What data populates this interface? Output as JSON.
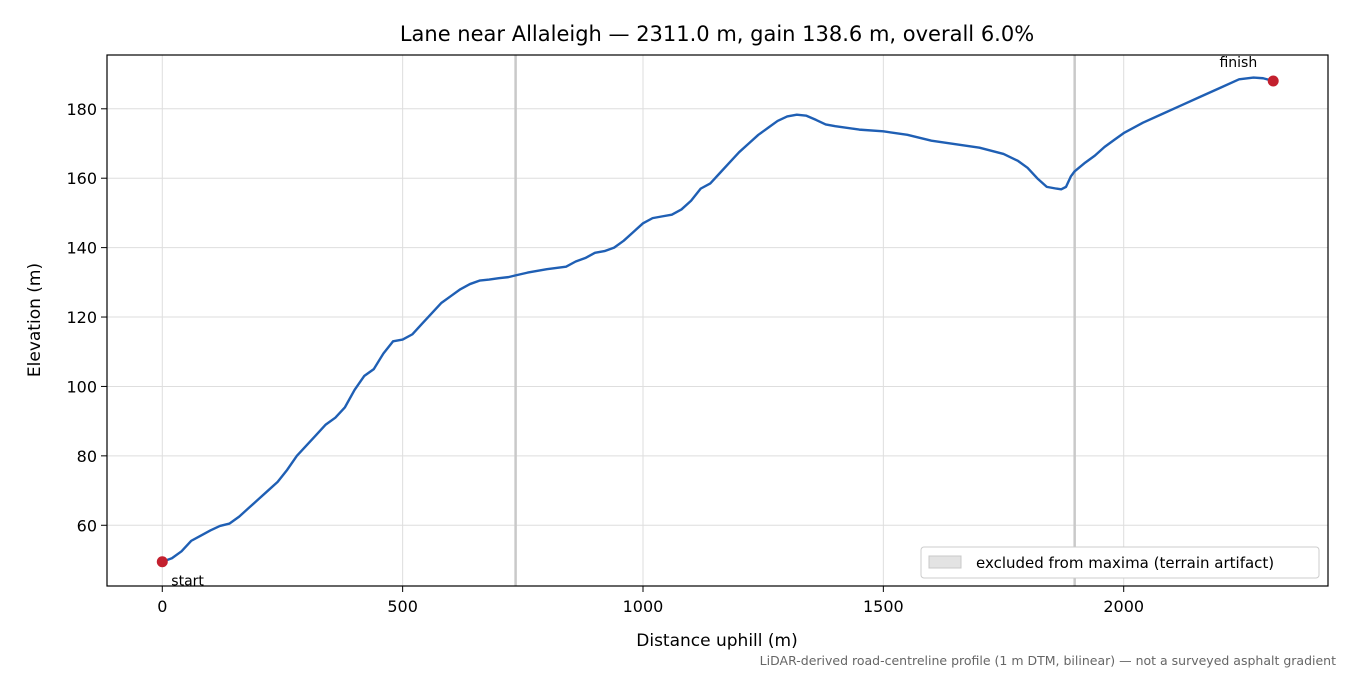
{
  "chart_data": {
    "type": "line",
    "title": "Lane near Allaleigh — 2311.0 m, gain 138.6 m, overall 6.0%",
    "xlabel": "Distance uphill (m)",
    "ylabel": "Elevation (m)",
    "xlim": [
      -115,
      2425
    ],
    "ylim": [
      42.5,
      195.5
    ],
    "xticks": [
      0,
      500,
      1000,
      1500,
      2000
    ],
    "yticks": [
      60,
      80,
      100,
      120,
      140,
      160,
      180
    ],
    "grid": true,
    "legend": {
      "position": "bottom-right",
      "entries": [
        "excluded from maxima (terrain artifact)"
      ]
    },
    "excluded_markers_x": [
      735,
      1898
    ],
    "series": [
      {
        "color": "#1f5fb4",
        "x": [
          0,
          20,
          40,
          60,
          80,
          100,
          120,
          140,
          160,
          180,
          200,
          220,
          240,
          260,
          280,
          300,
          320,
          340,
          360,
          380,
          400,
          420,
          440,
          460,
          480,
          500,
          520,
          540,
          560,
          580,
          600,
          620,
          640,
          660,
          680,
          700,
          720,
          735,
          760,
          800,
          840,
          860,
          880,
          900,
          920,
          940,
          960,
          980,
          1000,
          1020,
          1040,
          1060,
          1080,
          1100,
          1120,
          1140,
          1160,
          1180,
          1200,
          1220,
          1240,
          1260,
          1280,
          1300,
          1320,
          1340,
          1360,
          1380,
          1400,
          1450,
          1500,
          1550,
          1600,
          1650,
          1700,
          1750,
          1780,
          1800,
          1820,
          1840,
          1860,
          1870,
          1880,
          1890,
          1898,
          1920,
          1940,
          1960,
          1980,
          2000,
          2040,
          2080,
          2120,
          2160,
          2200,
          2240,
          2270,
          2290,
          2311
        ],
        "y": [
          49.5,
          50.5,
          52.5,
          55.5,
          57.0,
          58.5,
          59.8,
          60.5,
          62.5,
          65.0,
          67.5,
          70.0,
          72.5,
          76.0,
          80.0,
          83.0,
          86.0,
          89.0,
          91.0,
          94.0,
          99.0,
          103.0,
          105.0,
          109.5,
          113.0,
          113.5,
          115.0,
          118.0,
          121.0,
          124.0,
          126.0,
          128.0,
          129.5,
          130.5,
          130.8,
          131.2,
          131.5,
          132.0,
          132.8,
          133.8,
          134.5,
          136.0,
          137.0,
          138.5,
          139.0,
          140.0,
          142.0,
          144.5,
          147.0,
          148.5,
          149.0,
          149.5,
          151.0,
          153.5,
          157.0,
          158.5,
          161.5,
          164.5,
          167.5,
          170.0,
          172.5,
          174.5,
          176.5,
          177.8,
          178.3,
          178.0,
          176.8,
          175.5,
          175.0,
          174.0,
          173.5,
          172.5,
          170.8,
          169.8,
          168.8,
          167.0,
          165.0,
          163.0,
          160.0,
          157.5,
          157.0,
          156.8,
          157.5,
          160.5,
          162.0,
          164.5,
          166.5,
          169.0,
          171.0,
          173.0,
          176.0,
          178.5,
          181.0,
          183.5,
          186.0,
          188.5,
          189.0,
          188.8,
          188.0
        ]
      }
    ],
    "points": [
      {
        "label": "start",
        "x": 0,
        "y": 49.5
      },
      {
        "label": "finish",
        "x": 2311,
        "y": 188.0
      }
    ],
    "point_color": "#c3202e",
    "note": "LiDAR-derived road-centreline profile (1 m DTM, bilinear) — not a surveyed asphalt gradient"
  }
}
